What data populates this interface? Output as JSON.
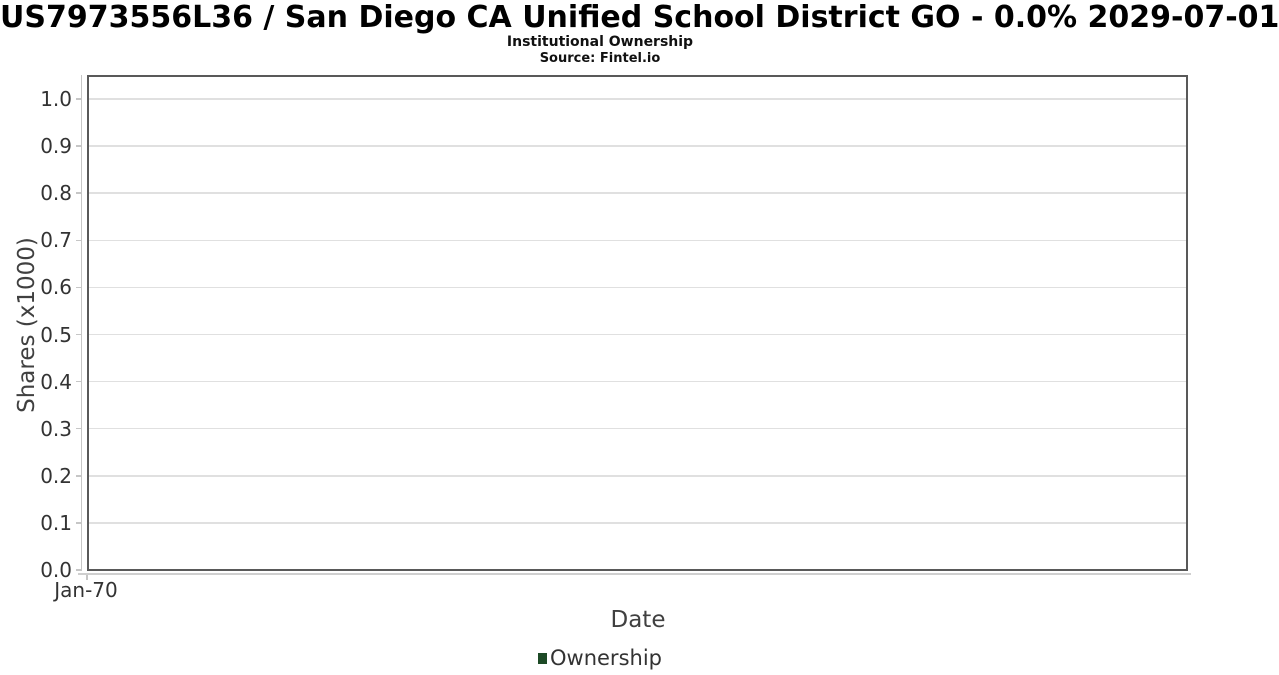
{
  "chart_data": {
    "type": "line",
    "title": "US7973556L36 / San Diego CA Unified School District GO - 0.0% 2029-07-01",
    "subtitle": "Institutional Ownership",
    "source_note": "Source: Fintel.io",
    "xlabel": "Date",
    "ylabel": "Shares (x1000)",
    "xticks": [
      "Jan-70"
    ],
    "yticks": [
      {
        "label": "0.0",
        "value": 0.0
      },
      {
        "label": "0.1",
        "value": 0.1
      },
      {
        "label": "0.2",
        "value": 0.2
      },
      {
        "label": "0.3",
        "value": 0.3
      },
      {
        "label": "0.4",
        "value": 0.4
      },
      {
        "label": "0.5",
        "value": 0.5
      },
      {
        "label": "0.6",
        "value": 0.6
      },
      {
        "label": "0.7",
        "value": 0.7
      },
      {
        "label": "0.8",
        "value": 0.8
      },
      {
        "label": "0.9",
        "value": 0.9
      },
      {
        "label": "1.0",
        "value": 1.0
      }
    ],
    "ylim": [
      0,
      1.05
    ],
    "grid": "horizontal-only",
    "legend": {
      "position": "bottom-center",
      "items": [
        {
          "label": "Ownership",
          "color": "#1d4a26"
        }
      ]
    },
    "series": [
      {
        "name": "Ownership",
        "color": "#1d4a26",
        "points": []
      }
    ]
  },
  "colors": {
    "plot_border": "#595959",
    "gridline": "#e0e0e0",
    "axis_line": "#c6c6c6",
    "tick_label": "#333333",
    "axis_title": "#404040",
    "legend_marker": "#1d4a26"
  }
}
